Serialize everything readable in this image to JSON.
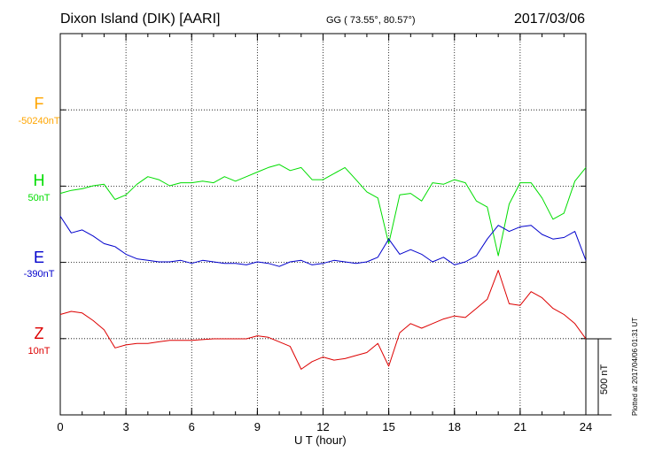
{
  "header": {
    "title": "Dixon Island (DIK)  [AARI]",
    "coords": "GG ( 73.55°,  80.57°)",
    "date": "2017/03/06"
  },
  "footer": {
    "xlabel": "U T (hour)",
    "plotted": "Plotted at 2017/04/06 01:31  UT",
    "scale": "500 nT"
  },
  "channels": [
    {
      "name": "F",
      "baseline": "-50240nT",
      "color": "#ffa500"
    },
    {
      "name": "H",
      "baseline": "50nT",
      "color": "#00dd00"
    },
    {
      "name": "E",
      "baseline": "-390nT",
      "color": "#0000cc"
    },
    {
      "name": "Z",
      "baseline": "10nT",
      "color": "#dd0000"
    }
  ],
  "chart_data": {
    "type": "line",
    "xlabel": "U T (hour)",
    "xlim": [
      0,
      24
    ],
    "x_ticks": [
      "0",
      "3",
      "6",
      "9",
      "12",
      "15",
      "18",
      "21",
      "24"
    ],
    "scale_bar_nT": 500,
    "unit": "nT",
    "grid": true,
    "series": [
      {
        "name": "H",
        "baseline": "50nT",
        "color": "#00dd00",
        "x": [
          0,
          0.5,
          1,
          1.5,
          2,
          2.5,
          3,
          3.5,
          4,
          4.5,
          5,
          5.5,
          6,
          6.5,
          7,
          7.5,
          8,
          8.5,
          9,
          9.5,
          10,
          10.5,
          11,
          11.5,
          12,
          12.5,
          13,
          13.5,
          14,
          14.5,
          15,
          15.5,
          16,
          16.5,
          17,
          17.5,
          18,
          18.5,
          19,
          19.5,
          20,
          20.5,
          21,
          21.5,
          22,
          22.5,
          23,
          23.5,
          24
        ],
        "y": [
          -50,
          -30,
          -20,
          0,
          10,
          -90,
          -60,
          10,
          60,
          40,
          0,
          20,
          20,
          30,
          20,
          60,
          30,
          60,
          90,
          120,
          140,
          100,
          120,
          40,
          40,
          80,
          120,
          40,
          -40,
          -80,
          -380,
          -60,
          -50,
          -100,
          20,
          10,
          40,
          20,
          -100,
          -140,
          -460,
          -120,
          20,
          20,
          -80,
          -220,
          -180,
          30,
          120
        ]
      },
      {
        "name": "E",
        "baseline": "-390nT",
        "color": "#0000cc",
        "x": [
          0,
          0.5,
          1,
          1.5,
          2,
          2.5,
          3,
          3.5,
          4,
          4.5,
          5,
          5.5,
          6,
          6.5,
          7,
          7.5,
          8,
          8.5,
          9,
          9.5,
          10,
          10.5,
          11,
          11.5,
          12,
          12.5,
          13,
          13.5,
          14,
          14.5,
          15,
          15.5,
          16,
          16.5,
          17,
          17.5,
          18,
          18.5,
          19,
          19.5,
          20,
          20.5,
          21,
          21.5,
          22,
          22.5,
          23,
          23.5,
          24
        ],
        "y": [
          300,
          190,
          210,
          170,
          120,
          100,
          50,
          20,
          10,
          0,
          0,
          10,
          -10,
          10,
          0,
          -10,
          -10,
          -20,
          0,
          -10,
          -30,
          0,
          10,
          -20,
          -10,
          10,
          0,
          -10,
          0,
          30,
          150,
          50,
          80,
          50,
          0,
          30,
          -20,
          0,
          40,
          150,
          240,
          200,
          230,
          240,
          180,
          150,
          160,
          200,
          10
        ]
      },
      {
        "name": "Z",
        "baseline": "10nT",
        "color": "#dd0000",
        "x": [
          0,
          0.5,
          1,
          1.5,
          2,
          2.5,
          3,
          3.5,
          4,
          4.5,
          5,
          5.5,
          6,
          6.5,
          7,
          7.5,
          8,
          8.5,
          9,
          9.5,
          10,
          10.5,
          11,
          11.5,
          12,
          12.5,
          13,
          13.5,
          14,
          14.5,
          15,
          15.5,
          16,
          16.5,
          17,
          17.5,
          18,
          18.5,
          19,
          19.5,
          20,
          20.5,
          21,
          21.5,
          22,
          22.5,
          23,
          23.5,
          24
        ],
        "y": [
          160,
          180,
          170,
          120,
          60,
          -60,
          -40,
          -30,
          -30,
          -20,
          -10,
          -10,
          -10,
          -5,
          0,
          0,
          0,
          0,
          20,
          10,
          -20,
          -50,
          -200,
          -150,
          -120,
          -140,
          -130,
          -110,
          -90,
          -30,
          -180,
          40,
          100,
          70,
          100,
          130,
          150,
          140,
          200,
          260,
          450,
          230,
          220,
          310,
          270,
          200,
          160,
          100,
          0
        ]
      }
    ]
  }
}
